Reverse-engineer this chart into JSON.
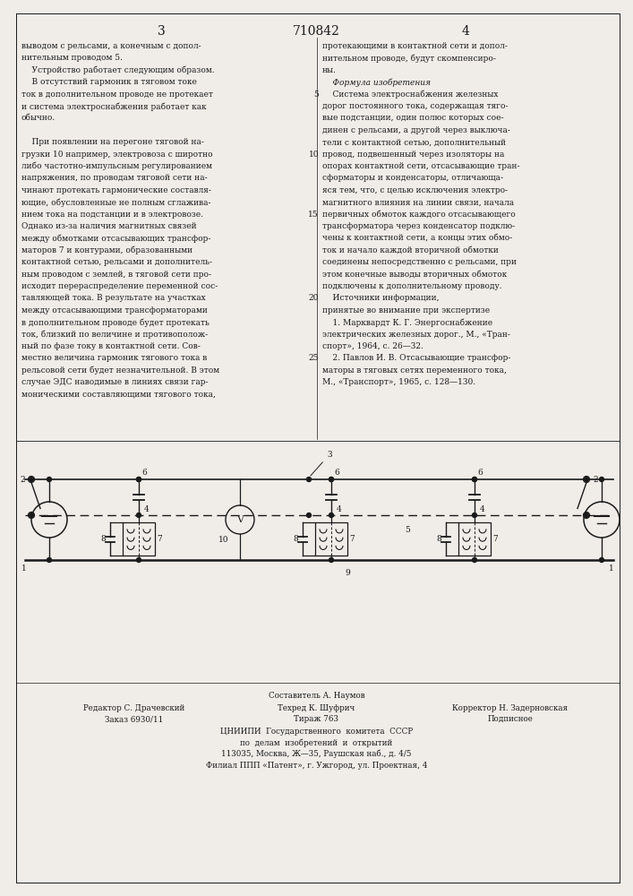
{
  "page_bg": "#f0ede8",
  "text_color": "#1a1a1a",
  "title_number": "710842",
  "page_numbers": [
    "3",
    "4"
  ],
  "left_column_text": [
    "выводом с рельсами, а конечным с допол-",
    "нительным проводом 5.",
    "    Устройство работает следующим образом.",
    "    В отсутствий гармоник в тяговом токе",
    "ток в дополнительном проводе не протекает",
    "и система электроснабжения работает как",
    "обычно.",
    "",
    "    При появлении на перегоне тяговой на-",
    "грузки 10 например, электровоза с широтно",
    "либо частотно-импульсным регулированием",
    "напряжения, по проводам тяговой сети на-",
    "чинают протекать гармонические составля-",
    "ющие, обусловленные не полным сглажива-",
    "нием тока на подстанции и в электровозе.",
    "Однако из-за наличия магнитных связей",
    "между обмотками отсасывающих трансфор-",
    "маторов 7 и контурами, образованными",
    "контактной сетью, рельсами и дополнитель-",
    "ным проводом с землей, в тяговой сети про-",
    "исходит перераспределение переменной сос-",
    "тавляющей тока. В результате на участках",
    "между отсасывающими трансформаторами",
    "в дополнительном проводе будет протекать",
    "ток, близкий по величине и противополож-",
    "ный по фазе току в контактной сети. Сов-",
    "местно величина гармоник тягового тока в",
    "рельсовой сети будет незначительной. В этом",
    "случае ЭДС наводимые в линиях связи гар-",
    "моническими составляющими тягового тока,"
  ],
  "right_column_text": [
    "протекающими в контактной сети и допол-",
    "нительном проводе, будут скомпенсиро-",
    "ны.",
    "    Формула изобретения",
    "    Система электроснабжения железных",
    "дорог постоянного тока, содержащая тяго-",
    "вые подстанции, один полюс которых сое-",
    "динен с рельсами, а другой через выключа-",
    "тели с контактной сетью, дополнительный",
    "провод, подвешенный через изоляторы на",
    "опорах контактной сети, отсасывающие тран-",
    "сформаторы и конденсаторы, отличающа-",
    "яся тем, что, с целью исключения электро-",
    "магнитного влияния на линии связи, начала",
    "первичных обмоток каждого отсасывающего",
    "трансформатора через конденсатор подклю-",
    "чены к контактной сети, а концы этих обмо-",
    "ток и начало каждой вторичной обмотки",
    "соединены непосредственно с рельсами, при",
    "этом конечные выводы вторичных обмоток",
    "подключены к дополнительному проводу.",
    "    Источники информации,",
    "принятые во внимание при экспертизе",
    "    1. Марквардт К. Г. Энергоснабжение",
    "электрических железных дорог., М., «Тран-",
    "спорт», 1964, с. 26—32.",
    "    2. Павлов И. В. Отсасывающие трансфор-",
    "маторы в тяговых сетях переменного тока,",
    "М., «Транспорт», 1965, с. 128—130."
  ],
  "right_line_num_rows": [
    4,
    9,
    14,
    21,
    26
  ],
  "right_line_num_labels": [
    "5",
    "10",
    "15",
    "20",
    "25"
  ],
  "footer_line0": "Составитель А. Наумов",
  "footer_left1": "Редактор С. Драчевский",
  "footer_mid1": "Техред К. Шуфрич",
  "footer_right1": "Корректор Н. Задерновская",
  "footer_left2": "Заказ 6930/11",
  "footer_mid2": "Тираж 763",
  "footer_right2": "Подписное",
  "footer_line3": "ЦНИИПИ  Государственного  комитета  СССР",
  "footer_line4": "по  делам  изобретений  и  открытий",
  "footer_line5": "113035, Москва, Ж—35, Раушская наб., д. 4/5",
  "footer_line6": "Филиал ППП «Патент», г. Ужгород, ул. Проектная, 4"
}
